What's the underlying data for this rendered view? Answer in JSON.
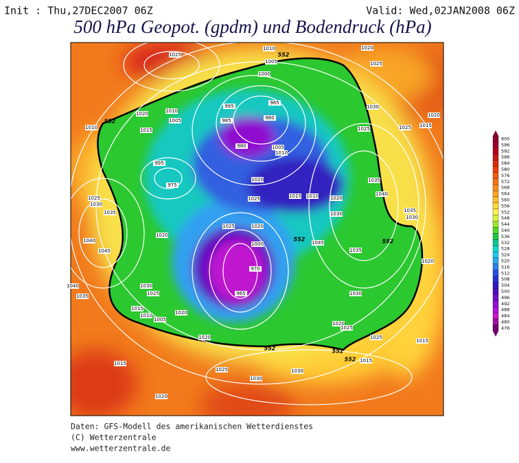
{
  "header": {
    "init": "Init : Thu,27DEC2007 06Z",
    "valid": "Valid: Wed,02JAN2008 06Z",
    "title": "500 hPa Geopot. (gpdm) und Bodendruck (hPa)"
  },
  "colorbar": {
    "levels": [
      600,
      596,
      592,
      588,
      584,
      580,
      576,
      572,
      568,
      564,
      560,
      556,
      552,
      548,
      544,
      540,
      536,
      532,
      528,
      524,
      520,
      516,
      512,
      508,
      504,
      500,
      496,
      492,
      488,
      484,
      480,
      476
    ],
    "colors": [
      "#8b0030",
      "#a0002a",
      "#b40020",
      "#c81818",
      "#dc2a10",
      "#e8400c",
      "#f05a10",
      "#f47418",
      "#f88c1c",
      "#fca424",
      "#ffbe2c",
      "#ffd83a",
      "#fff050",
      "#d8f040",
      "#9ce830",
      "#50d828",
      "#20c848",
      "#10c890",
      "#10d8c8",
      "#20c8f0",
      "#30a8f0",
      "#3080e8",
      "#2850e0",
      "#2830d0",
      "#3018c0",
      "#5010c0",
      "#7010c8",
      "#9010d0",
      "#b010d8",
      "#c818c8",
      "#a010a0",
      "#700070"
    ]
  },
  "isobar_labels": [
    1025,
    1010,
    1020,
    1005,
    1025,
    1000,
    1020,
    1010,
    995,
    985,
    1005,
    985,
    980,
    1030,
    1020,
    1010,
    1015,
    1025,
    1015,
    1025,
    980,
    1005,
    1010,
    995,
    975,
    1020,
    1015,
    1010,
    1025,
    1020,
    1030,
    1035,
    1040,
    1035,
    1030,
    1025,
    1030,
    1035,
    1040,
    1045,
    1020,
    1025,
    1020,
    1000,
    1045,
    970,
    965,
    1040,
    1035,
    1030,
    1025,
    1015,
    1010,
    1005,
    1020,
    1020,
    1020,
    1025,
    1025,
    1015,
    1015,
    1015,
    1025,
    1030,
    1030,
    1020,
    1035,
    1030,
    1020
  ],
  "height_labels": [
    552,
    552,
    552,
    552,
    552,
    552,
    552
  ],
  "footer": [
    "Daten: GFS-Modell des amerikanischen Wetterdienstes",
    "(C) Wetterzentrale",
    "www.wetterzentrale.de"
  ]
}
